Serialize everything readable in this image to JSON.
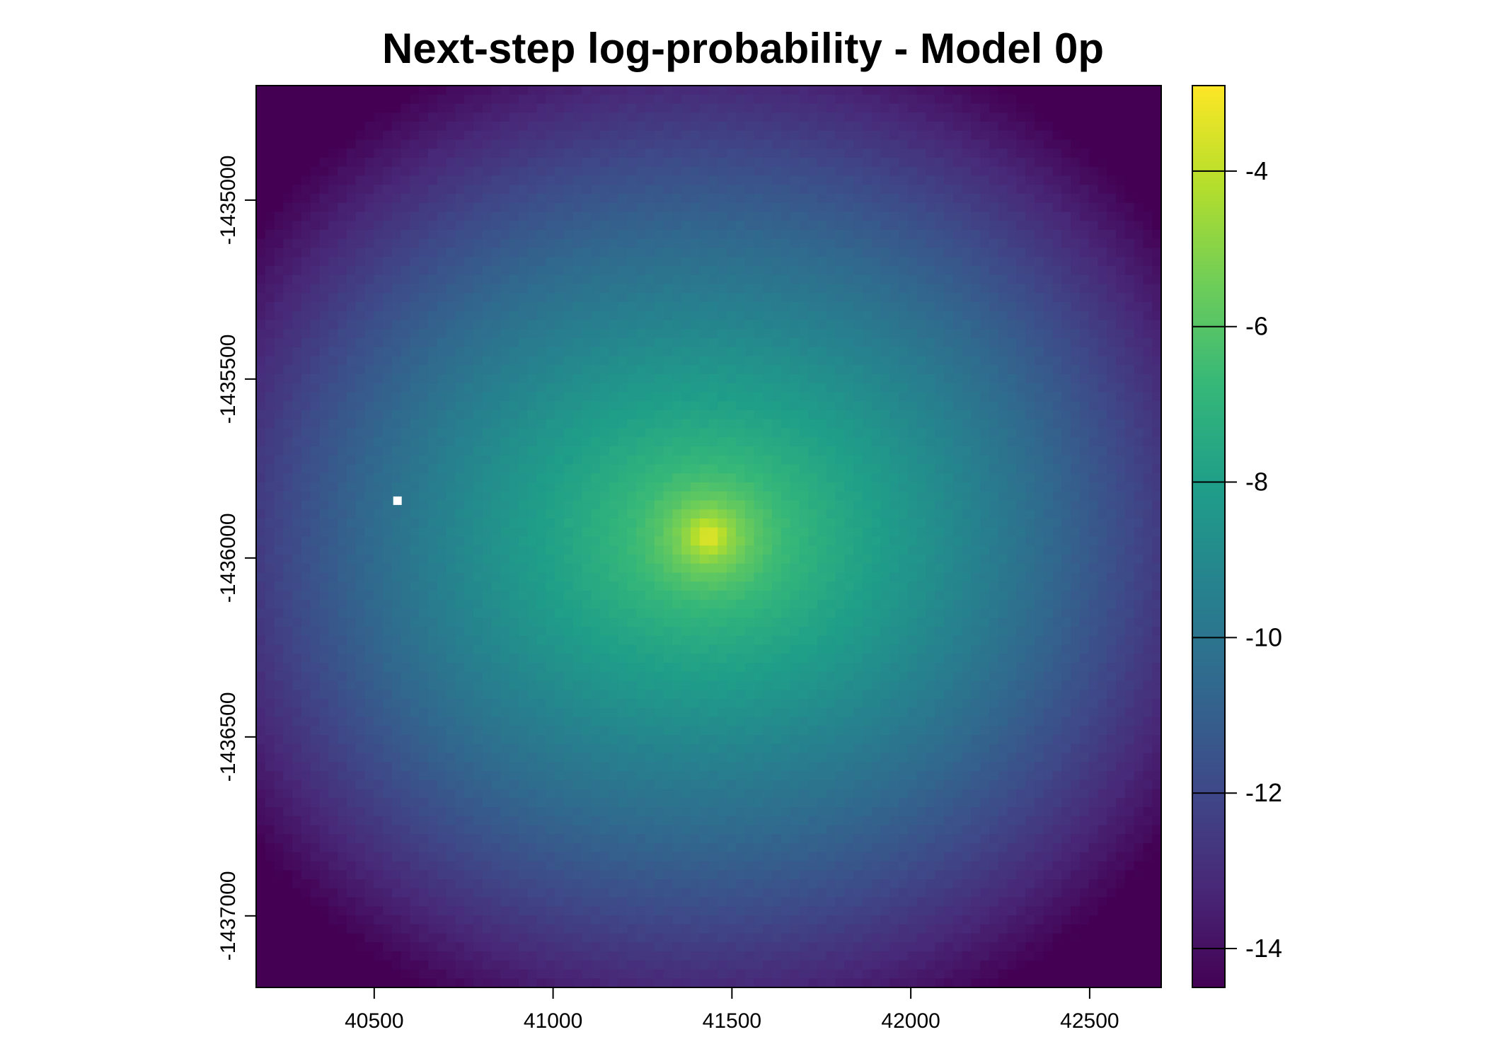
{
  "chart_data": {
    "type": "heatmap",
    "title": "Next-step log-probability - Model 0p",
    "xlabel": "",
    "ylabel": "",
    "x_ticks": [
      40500,
      41000,
      41500,
      42000,
      42500
    ],
    "x_tick_labels": [
      "40500",
      "41000",
      "41500",
      "42000",
      "42500"
    ],
    "y_ticks": [
      -1435000,
      -1435500,
      -1436000,
      -1436500,
      -1437000
    ],
    "y_tick_labels": [
      "-1435000",
      "-1435500",
      "-1436000",
      "-1436500",
      "-1437000"
    ],
    "xlim": [
      40170,
      42700
    ],
    "ylim": [
      -1437200,
      -1434680
    ],
    "colorbar": {
      "ticks": [
        -4,
        -6,
        -8,
        -10,
        -12,
        -14
      ],
      "tick_labels": [
        "-4",
        "-6",
        "-8",
        "-10",
        "-12",
        "-14"
      ],
      "range": [
        -14.5,
        -2.9
      ],
      "colormap": "viridis"
    },
    "grid": false,
    "peak": {
      "x": 41435,
      "y": -1435940,
      "value": -2.9
    },
    "missing_cell": {
      "x": 40565,
      "y": -1435840
    },
    "value_range": [
      -14.5,
      -2.9
    ]
  }
}
